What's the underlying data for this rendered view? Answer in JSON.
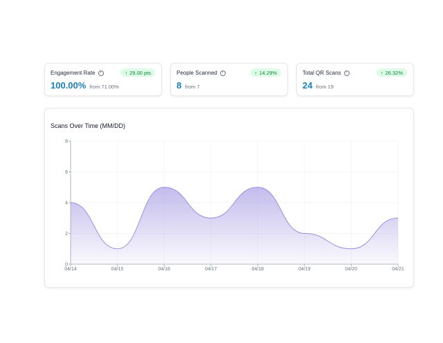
{
  "stats": [
    {
      "label": "Engagement Rate",
      "badge": "29.00 pts",
      "value": "100.00%",
      "from": "from 71.00%"
    },
    {
      "label": "People Scanned",
      "badge": "14.29%",
      "value": "8",
      "from": "from 7"
    },
    {
      "label": "Total QR Scans",
      "badge": "26.32%",
      "value": "24",
      "from": "from 19"
    }
  ],
  "colors": {
    "accent": "#1a7fb9",
    "badge_bg": "#dcfce7",
    "badge_text": "#15803d",
    "series": "#9b8fe0"
  },
  "chart_data": {
    "type": "area",
    "title": "Scans Over Time (MM/DD)",
    "categories": [
      "04/14",
      "04/15",
      "04/16",
      "04/17",
      "04/18",
      "04/19",
      "04/20",
      "04/21"
    ],
    "values": [
      4,
      1,
      5,
      3,
      5,
      2,
      1,
      3
    ],
    "ylim": [
      0,
      8
    ],
    "yticks": [
      0,
      2,
      4,
      6,
      8
    ],
    "grid": true
  }
}
